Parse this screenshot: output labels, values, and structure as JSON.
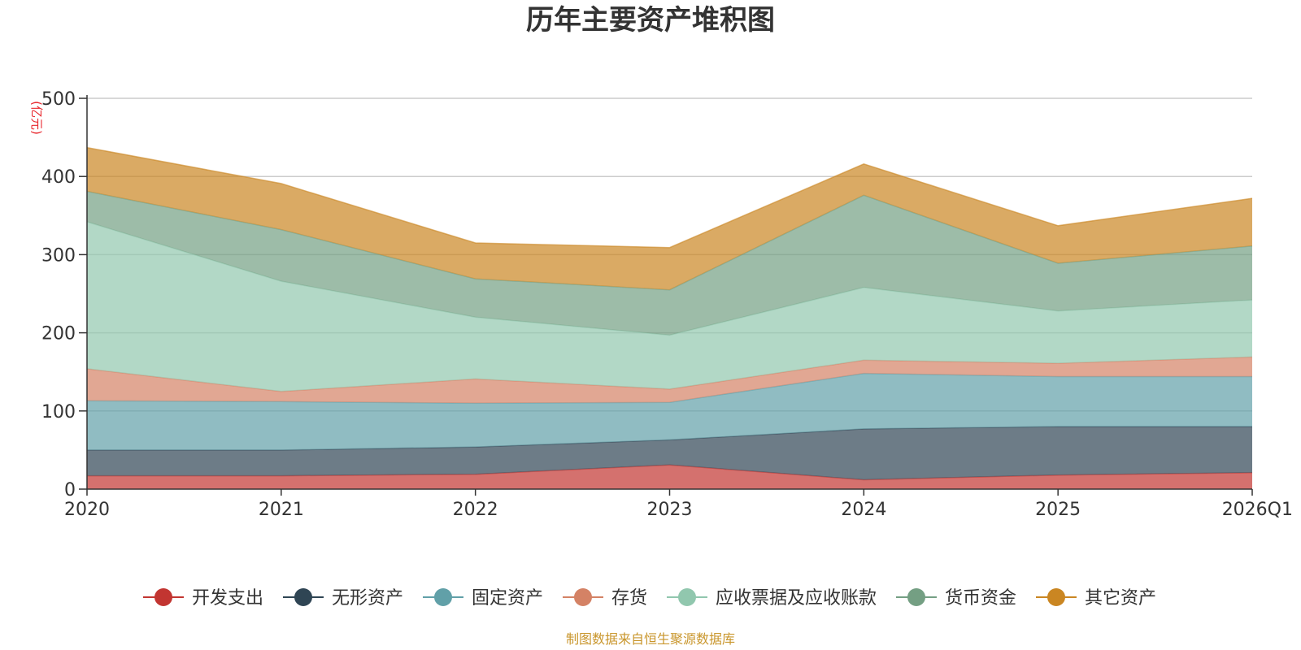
{
  "chart_data": {
    "type": "area",
    "stacked": true,
    "title": "历年主要资产堆积图",
    "unit_label": "(亿元)",
    "source_note": "制图数据来自恒生聚源数据库",
    "categories": [
      "2020",
      "2021",
      "2022",
      "2023",
      "2024",
      "2025",
      "2026Q1"
    ],
    "ylim": [
      0,
      500
    ],
    "yticks": [
      "0",
      "100",
      "200",
      "300",
      "400",
      "500"
    ],
    "grid": true,
    "legend_position": "bottom",
    "series": [
      {
        "name": "开发支出",
        "color": "#c23531",
        "values": [
          17,
          17,
          19,
          31,
          12,
          18,
          21
        ]
      },
      {
        "name": "无形资产",
        "color": "#2f4554",
        "values": [
          33,
          33,
          35,
          32,
          65,
          62,
          59
        ]
      },
      {
        "name": "固定资产",
        "color": "#61a0a8",
        "values": [
          63,
          62,
          56,
          48,
          71,
          64,
          64
        ]
      },
      {
        "name": "存货",
        "color": "#d48265",
        "values": [
          41,
          13,
          31,
          17,
          17,
          17,
          25
        ]
      },
      {
        "name": "应收票据及应收账款",
        "color": "#91c7ae",
        "values": [
          188,
          141,
          79,
          69,
          93,
          67,
          73
        ]
      },
      {
        "name": "货币资金",
        "color": "#749f83",
        "values": [
          39,
          66,
          49,
          58,
          118,
          61,
          69
        ]
      },
      {
        "name": "其它资产",
        "color": "#ca8622",
        "values": [
          56,
          59,
          46,
          54,
          40,
          48,
          61
        ]
      }
    ]
  }
}
